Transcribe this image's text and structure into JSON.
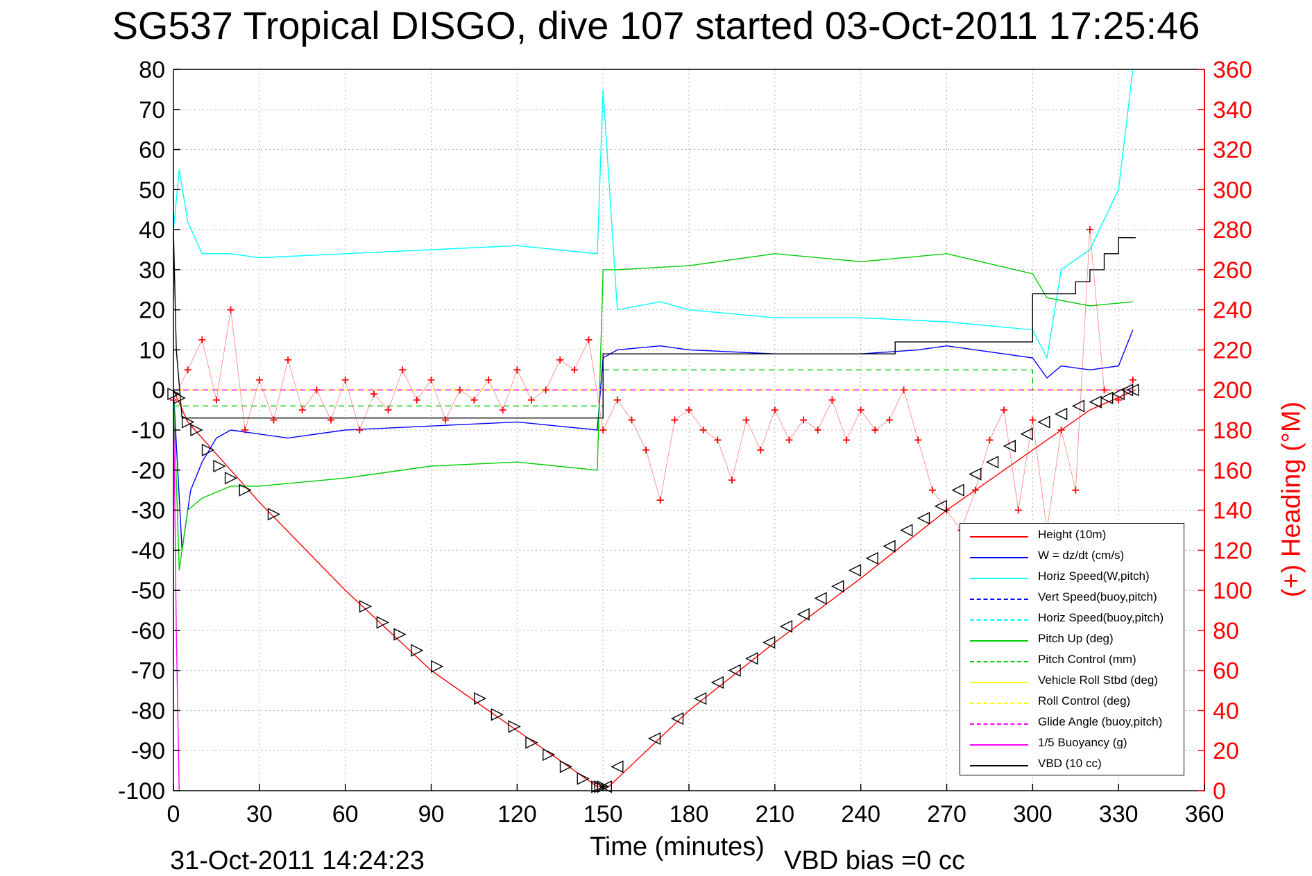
{
  "title": "SG537 Tropical DISGO, dive 107 started 03-Oct-2011 17:25:46",
  "footer_left": "31-Oct-2011 14:24:23",
  "footer_right": "VBD bias =0 cc",
  "chart_data": {
    "type": "line",
    "xlabel": "Time (minutes)",
    "ylabel": "",
    "y2label": "(+) Heading (°M)",
    "xlim": [
      0,
      360
    ],
    "ylim": [
      -100,
      80
    ],
    "y2lim": [
      0,
      360
    ],
    "xticks": [
      0,
      30,
      60,
      90,
      120,
      150,
      180,
      210,
      240,
      270,
      300,
      330,
      360
    ],
    "yticks": [
      80,
      70,
      60,
      50,
      40,
      30,
      20,
      10,
      0,
      -10,
      -20,
      -30,
      -40,
      -50,
      -60,
      -70,
      -80,
      -90,
      -100
    ],
    "y2ticks": [
      360,
      340,
      320,
      300,
      280,
      260,
      240,
      220,
      200,
      180,
      160,
      140,
      120,
      100,
      80,
      60,
      40,
      20,
      0
    ],
    "grid": true,
    "legend_position": "bottom-right",
    "series": [
      {
        "name": "Height (10m)",
        "color": "#ff0000",
        "style": "solid",
        "x": [
          0,
          5,
          10,
          20,
          30,
          60,
          90,
          120,
          148,
          152,
          180,
          210,
          240,
          270,
          300,
          320,
          336
        ],
        "y": [
          0,
          -8,
          -12,
          -20,
          -28,
          -50,
          -70,
          -85,
          -99,
          -99,
          -80,
          -63,
          -47,
          -30,
          -15,
          -5,
          0
        ]
      },
      {
        "name": "W = dz/dt (cm/s)",
        "color": "#0000ff",
        "style": "solid",
        "x": [
          0,
          3,
          6,
          10,
          15,
          20,
          30,
          40,
          60,
          90,
          120,
          148,
          150,
          155,
          170,
          180,
          210,
          240,
          260,
          270,
          280,
          300,
          305,
          310,
          320,
          330,
          335
        ],
        "y": [
          0,
          -40,
          -25,
          -18,
          -12,
          -10,
          -11,
          -12,
          -10,
          -9,
          -8,
          -10,
          8,
          10,
          11,
          10,
          9,
          9,
          10,
          11,
          10,
          8,
          3,
          6,
          5,
          6,
          15
        ]
      },
      {
        "name": "Horiz Speed(W,pitch)",
        "color": "#00ffff",
        "style": "solid",
        "x": [
          0,
          2,
          5,
          10,
          20,
          30,
          60,
          90,
          120,
          148,
          150,
          155,
          170,
          180,
          210,
          240,
          270,
          300,
          305,
          310,
          320,
          330,
          335
        ],
        "y": [
          40,
          55,
          42,
          34,
          34,
          33,
          34,
          35,
          36,
          34,
          75,
          20,
          22,
          20,
          18,
          18,
          17,
          15,
          8,
          30,
          35,
          50,
          80
        ]
      },
      {
        "name": "Vert Speed(buoy,pitch)",
        "color": "#0000ff",
        "style": "dashed",
        "x": [
          0,
          336
        ],
        "y": [
          0,
          0
        ]
      },
      {
        "name": "Horiz Speed(buoy,pitch)",
        "color": "#00ffff",
        "style": "dashed",
        "x": [
          0,
          336
        ],
        "y": [
          0,
          0
        ]
      },
      {
        "name": "Pitch Up (deg)",
        "color": "#00cc00",
        "style": "solid",
        "x": [
          0,
          2,
          5,
          10,
          20,
          30,
          60,
          90,
          120,
          148,
          150,
          155,
          180,
          210,
          240,
          270,
          300,
          305,
          320,
          335
        ],
        "y": [
          0,
          -45,
          -30,
          -27,
          -24,
          -24,
          -22,
          -19,
          -18,
          -20,
          30,
          30,
          31,
          34,
          32,
          34,
          29,
          23,
          21,
          22
        ]
      },
      {
        "name": "Pitch Control (mm)",
        "color": "#00cc00",
        "style": "dashed",
        "x": [
          0,
          150,
          150,
          300,
          300,
          336
        ],
        "y": [
          -4,
          -4,
          5,
          5,
          0,
          0
        ]
      },
      {
        "name": "Vehicle Roll Stbd (deg)",
        "color": "#ffff00",
        "style": "solid",
        "x": [
          0,
          30,
          60,
          90,
          120,
          150,
          180,
          210,
          240,
          270,
          300,
          336
        ],
        "y": [
          0,
          0,
          0,
          0,
          0,
          0,
          0,
          0,
          0,
          0,
          0,
          0
        ]
      },
      {
        "name": "Roll Control (deg)",
        "color": "#ffff00",
        "style": "dashed",
        "x": [
          0,
          336
        ],
        "y": [
          0,
          0
        ]
      },
      {
        "name": "Glide Angle (buoy,pitch)",
        "color": "#ff00ff",
        "style": "dashed",
        "x": [
          0,
          336
        ],
        "y": [
          0,
          0
        ]
      },
      {
        "name": "1/5 Buoyancy (g)",
        "color": "#ff00ff",
        "style": "solid",
        "x": [
          0,
          1,
          2
        ],
        "y": [
          0,
          -60,
          -100
        ]
      },
      {
        "name": "VBD (10 cc)",
        "color": "#000000",
        "style": "solid",
        "x": [
          0,
          1,
          3,
          150,
          150,
          252,
          252,
          300,
          300,
          315,
          315,
          320,
          320,
          325,
          325,
          330,
          330,
          336
        ],
        "y": [
          40,
          10,
          -7,
          -7,
          9,
          9,
          12,
          12,
          24,
          24,
          27,
          27,
          30,
          30,
          34,
          34,
          38,
          38
        ]
      }
    ],
    "heading_series": {
      "color": "#ff0000",
      "marker": "+",
      "axis": "right",
      "x": [
        0,
        5,
        10,
        15,
        20,
        25,
        30,
        35,
        40,
        45,
        50,
        55,
        60,
        65,
        70,
        75,
        80,
        85,
        90,
        95,
        100,
        105,
        110,
        115,
        120,
        125,
        130,
        135,
        140,
        145,
        150,
        155,
        160,
        165,
        170,
        175,
        180,
        185,
        190,
        195,
        200,
        205,
        210,
        215,
        220,
        225,
        230,
        235,
        240,
        245,
        250,
        255,
        260,
        265,
        270,
        275,
        280,
        285,
        290,
        295,
        300,
        305,
        310,
        315,
        320,
        325,
        330,
        335
      ],
      "y": [
        195,
        210,
        225,
        195,
        240,
        180,
        205,
        185,
        215,
        190,
        200,
        185,
        205,
        180,
        198,
        190,
        210,
        195,
        205,
        185,
        200,
        195,
        205,
        190,
        210,
        195,
        200,
        215,
        210,
        225,
        180,
        195,
        185,
        170,
        145,
        185,
        190,
        180,
        175,
        155,
        185,
        170,
        190,
        175,
        185,
        180,
        195,
        175,
        190,
        180,
        185,
        200,
        175,
        150,
        140,
        130,
        150,
        175,
        190,
        140,
        185,
        130,
        180,
        150,
        280,
        200,
        195,
        205
      ]
    },
    "markers": {
      "shape": "triangle",
      "color": "#000000",
      "x": [
        0,
        2,
        5,
        8,
        12,
        16,
        20,
        25,
        35,
        67,
        73,
        79,
        85,
        92,
        107,
        113,
        119,
        125,
        131,
        137,
        143,
        148,
        149,
        150,
        151,
        155,
        168,
        176,
        184,
        190,
        196,
        202,
        208,
        214,
        220,
        226,
        232,
        238,
        244,
        250,
        256,
        262,
        268,
        274,
        280,
        286,
        292,
        298,
        304,
        310,
        316,
        322,
        326,
        330,
        333,
        335
      ],
      "y": [
        -1,
        -2,
        -8,
        -10,
        -15,
        -19,
        -22,
        -25,
        -31,
        -54,
        -58,
        -61,
        -65,
        -69,
        -77,
        -81,
        -84,
        -88,
        -91,
        -94,
        -97,
        -99,
        -99,
        -99,
        -99,
        -94,
        -87,
        -82,
        -77,
        -73,
        -70,
        -67,
        -63,
        -59,
        -56,
        -52,
        -49,
        -45,
        -42,
        -39,
        -35,
        -32,
        -29,
        -25,
        -21,
        -18,
        -14,
        -11,
        -8,
        -6,
        -4,
        -3,
        -2,
        -1,
        0,
        0
      ]
    }
  }
}
